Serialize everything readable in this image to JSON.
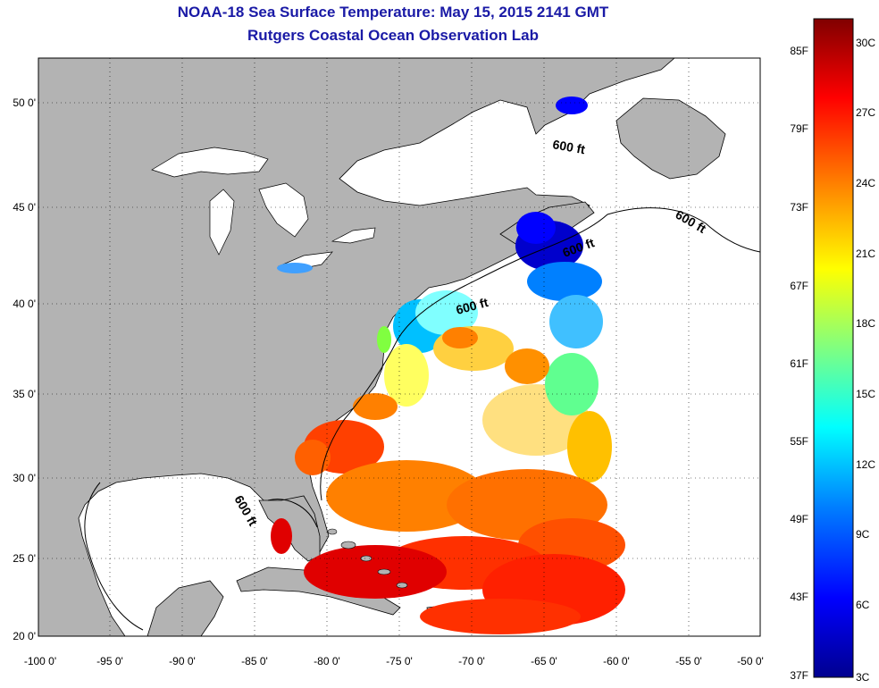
{
  "header": {
    "title": "NOAA-18 Sea Surface Temperature:  May 15, 2015 2141 GMT",
    "subtitle": "Rutgers Coastal Ocean Observation Lab"
  },
  "map": {
    "lon_range": [
      -100,
      -50
    ],
    "lat_range": [
      20,
      52.5
    ],
    "lon_ticks": [
      "-100 0'",
      "-95 0'",
      "-90 0'",
      "-85 0'",
      "-80 0'",
      "-75 0'",
      "-70 0'",
      "-65 0'",
      "-60 0'",
      "-55 0'",
      "-50 0'"
    ],
    "lat_ticks": [
      "20 0'",
      "25 0'",
      "30 0'",
      "35 0'",
      "40 0'",
      "45 0'",
      "50 0'"
    ],
    "grid": "dotted",
    "land_color": "#b3b3b3",
    "no_data_color": "#ffffff",
    "isobath_labels": [
      "600 ft",
      "600 ft",
      "600 ft",
      "600 ft",
      "600 ft"
    ]
  },
  "colorbar": {
    "fahrenheit_labels": [
      "85F",
      "79F",
      "73F",
      "67F",
      "61F",
      "55F",
      "49F",
      "43F",
      "37F"
    ],
    "celsius_labels": [
      "30C",
      "27C",
      "24C",
      "21C",
      "18C",
      "15C",
      "12C",
      "9C",
      "6C",
      "3C"
    ],
    "range_celsius": [
      3,
      31
    ],
    "colors": [
      "#00008f",
      "#0000ff",
      "#0080ff",
      "#00ffff",
      "#80ff80",
      "#ffff00",
      "#ff8000",
      "#ff0000",
      "#800000"
    ]
  }
}
